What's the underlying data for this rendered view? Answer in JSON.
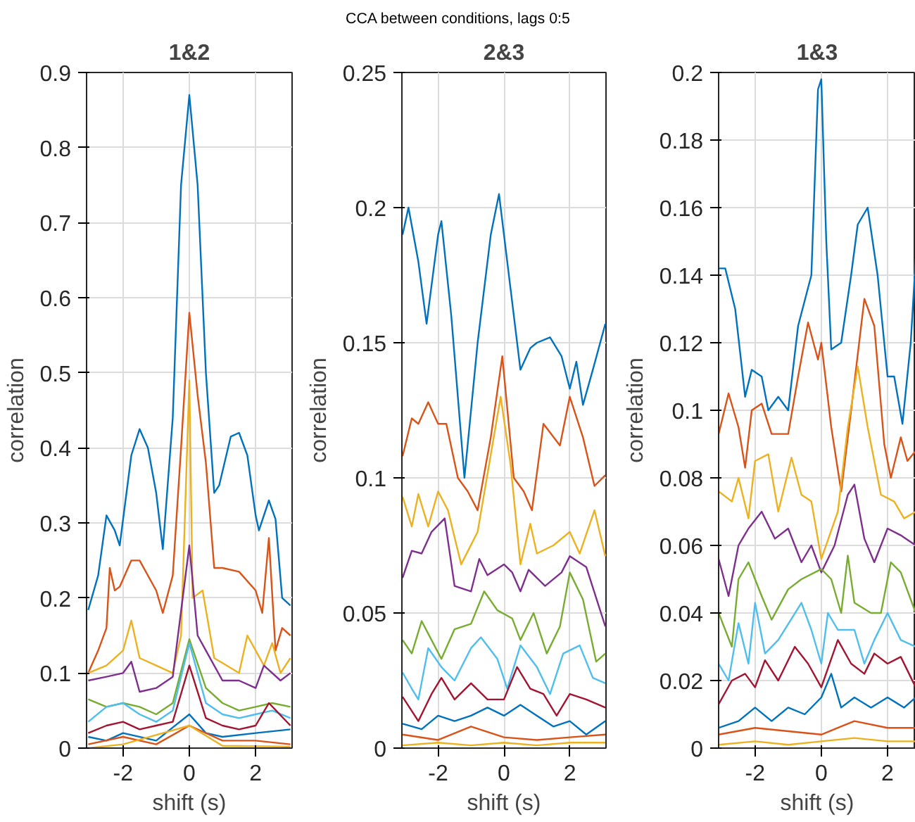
{
  "chart_data": [
    {
      "type": "line",
      "title": "1&2",
      "xlabel": "shift (s)",
      "ylabel": "correlation",
      "annotations": [
        "CCA between conditions, lags 0:5"
      ],
      "xlim": [
        -3.1,
        3.1
      ],
      "xticks": [
        -2,
        0,
        2
      ],
      "ylim": [
        0,
        0.9
      ],
      "yticks": [
        0,
        0.1,
        0.2,
        0.3,
        0.4,
        0.5,
        0.6,
        0.7,
        0.8,
        0.9
      ],
      "grid": true,
      "line_style": "solid",
      "series": [
        {
          "color": "#0072bd",
          "x": [
            -3.05,
            -2.75,
            -2.5,
            -2.25,
            -2.1,
            -1.75,
            -1.5,
            -1.25,
            -1.0,
            -0.8,
            -0.5,
            -0.25,
            0,
            0.25,
            0.5,
            0.75,
            0.9,
            1.25,
            1.5,
            1.75,
            2.0,
            2.1,
            2.4,
            2.6,
            2.8,
            3.05
          ],
          "values": [
            0.184,
            0.23,
            0.31,
            0.29,
            0.27,
            0.39,
            0.425,
            0.4,
            0.34,
            0.265,
            0.44,
            0.75,
            0.87,
            0.75,
            0.5,
            0.34,
            0.35,
            0.415,
            0.42,
            0.39,
            0.31,
            0.29,
            0.33,
            0.305,
            0.2,
            0.19
          ]
        },
        {
          "color": "#d95319",
          "x": [
            -3.05,
            -2.75,
            -2.5,
            -2.4,
            -2.25,
            -2.1,
            -1.75,
            -1.5,
            -1.0,
            -0.8,
            -0.5,
            -0.25,
            0,
            0.25,
            0.5,
            0.75,
            1.0,
            1.5,
            2.0,
            2.2,
            2.4,
            2.6,
            2.8,
            3.05
          ],
          "values": [
            0.1,
            0.13,
            0.16,
            0.24,
            0.21,
            0.215,
            0.25,
            0.25,
            0.21,
            0.18,
            0.23,
            0.4,
            0.58,
            0.47,
            0.38,
            0.24,
            0.24,
            0.235,
            0.21,
            0.18,
            0.28,
            0.13,
            0.16,
            0.15
          ]
        },
        {
          "color": "#edb120",
          "x": [
            -3.05,
            -2.5,
            -2.0,
            -1.75,
            -1.5,
            -1.0,
            -0.5,
            -0.25,
            0,
            0.1,
            0.4,
            0.75,
            1.5,
            1.75,
            2.25,
            2.5,
            2.75,
            3.05
          ],
          "values": [
            0.1,
            0.11,
            0.13,
            0.17,
            0.12,
            0.11,
            0.1,
            0.15,
            0.49,
            0.2,
            0.21,
            0.12,
            0.1,
            0.15,
            0.11,
            0.14,
            0.1,
            0.12
          ]
        },
        {
          "color": "#7e2f8e",
          "x": [
            -3.05,
            -2.5,
            -2.0,
            -1.75,
            -1.5,
            -1.0,
            -0.5,
            0,
            0.25,
            0.5,
            1.0,
            1.5,
            2.0,
            2.25,
            2.75,
            3.05
          ],
          "values": [
            0.09,
            0.095,
            0.1,
            0.115,
            0.075,
            0.08,
            0.095,
            0.27,
            0.15,
            0.13,
            0.09,
            0.09,
            0.08,
            0.11,
            0.09,
            0.1
          ]
        },
        {
          "color": "#77ac30",
          "x": [
            -3.05,
            -2.5,
            -2.0,
            -1.5,
            -1.0,
            -0.5,
            0,
            0.5,
            1.0,
            1.5,
            2.0,
            2.5,
            3.05
          ],
          "values": [
            0.065,
            0.055,
            0.06,
            0.055,
            0.045,
            0.06,
            0.145,
            0.08,
            0.06,
            0.05,
            0.055,
            0.06,
            0.055
          ]
        },
        {
          "color": "#4dbeee",
          "x": [
            -3.05,
            -2.5,
            -2.0,
            -1.5,
            -1.0,
            -0.5,
            0,
            0.5,
            1.0,
            1.5,
            2.0,
            2.5,
            3.05
          ],
          "values": [
            0.035,
            0.055,
            0.06,
            0.045,
            0.035,
            0.05,
            0.14,
            0.06,
            0.045,
            0.04,
            0.045,
            0.05,
            0.04
          ]
        },
        {
          "color": "#a2142f",
          "x": [
            -3.05,
            -2.5,
            -2.0,
            -1.5,
            -1.0,
            -0.5,
            0,
            0.5,
            1.0,
            1.5,
            2.0,
            2.4,
            3.05
          ],
          "values": [
            0.02,
            0.03,
            0.035,
            0.025,
            0.03,
            0.035,
            0.11,
            0.04,
            0.03,
            0.025,
            0.03,
            0.06,
            0.03
          ]
        },
        {
          "color": "#0072bd",
          "x": [
            -3.05,
            -2.5,
            -2.0,
            -1.0,
            0,
            0.5,
            1.0,
            2.0,
            3.05
          ],
          "values": [
            0.015,
            0.01,
            0.02,
            0.01,
            0.045,
            0.02,
            0.015,
            0.02,
            0.025
          ]
        },
        {
          "color": "#d95319",
          "x": [
            -3.05,
            -2.0,
            -1.0,
            0,
            1.0,
            2.0,
            3.05
          ],
          "values": [
            0.005,
            0.015,
            0.005,
            0.03,
            0.01,
            0.01,
            0.005
          ]
        },
        {
          "color": "#edb120",
          "x": [
            -3.05,
            -2.0,
            0,
            1.0,
            3.05
          ],
          "values": [
            0.0,
            0.005,
            0.03,
            0.003,
            0.002
          ]
        }
      ]
    },
    {
      "type": "line",
      "title": "2&3",
      "xlabel": "shift (s)",
      "ylabel": "correlation",
      "xlim": [
        -3.1,
        3.1
      ],
      "xticks": [
        -2,
        0,
        2
      ],
      "ylim": [
        0,
        0.25
      ],
      "yticks": [
        0,
        0.05,
        0.1,
        0.15,
        0.2,
        0.25
      ],
      "grid": true,
      "line_style": "solid",
      "series": [
        {
          "color": "#0072bd",
          "x": [
            -3.08,
            -2.9,
            -2.6,
            -2.35,
            -2.0,
            -1.9,
            -1.6,
            -1.2,
            -0.8,
            -0.4,
            -0.15,
            0.2,
            0.5,
            0.8,
            1.0,
            1.4,
            1.75,
            2.0,
            2.2,
            2.4,
            2.7,
            3.08
          ],
          "values": [
            0.19,
            0.2,
            0.18,
            0.157,
            0.19,
            0.195,
            0.16,
            0.1,
            0.15,
            0.19,
            0.205,
            0.17,
            0.14,
            0.148,
            0.15,
            0.152,
            0.145,
            0.133,
            0.143,
            0.127,
            0.14,
            0.157
          ]
        },
        {
          "color": "#d95319",
          "x": [
            -3.08,
            -2.8,
            -2.6,
            -2.3,
            -2.0,
            -1.75,
            -1.4,
            -1.1,
            -0.8,
            -0.4,
            -0.05,
            0.3,
            0.6,
            0.85,
            1.2,
            1.7,
            2.0,
            2.4,
            2.75,
            3.08
          ],
          "values": [
            0.108,
            0.122,
            0.12,
            0.128,
            0.12,
            0.12,
            0.1,
            0.095,
            0.088,
            0.115,
            0.145,
            0.1,
            0.095,
            0.088,
            0.12,
            0.112,
            0.13,
            0.115,
            0.097,
            0.101
          ]
        },
        {
          "color": "#edb120",
          "x": [
            -3.08,
            -2.8,
            -2.6,
            -2.3,
            -2.0,
            -1.7,
            -1.3,
            -0.8,
            -0.1,
            0.2,
            0.5,
            0.8,
            1.0,
            1.5,
            2.0,
            2.3,
            2.75,
            3.08
          ],
          "values": [
            0.093,
            0.082,
            0.094,
            0.082,
            0.095,
            0.088,
            0.068,
            0.08,
            0.13,
            0.105,
            0.068,
            0.083,
            0.072,
            0.075,
            0.08,
            0.072,
            0.088,
            0.071
          ]
        },
        {
          "color": "#7e2f8e",
          "x": [
            -3.08,
            -2.8,
            -2.5,
            -2.2,
            -1.8,
            -1.5,
            -1.0,
            -0.75,
            -0.5,
            0,
            0.25,
            0.5,
            0.75,
            1.25,
            1.75,
            2.0,
            2.5,
            3.08
          ],
          "values": [
            0.063,
            0.073,
            0.072,
            0.08,
            0.085,
            0.06,
            0.058,
            0.07,
            0.064,
            0.068,
            0.065,
            0.058,
            0.066,
            0.06,
            0.065,
            0.071,
            0.067,
            0.045
          ]
        },
        {
          "color": "#77ac30",
          "x": [
            -3.08,
            -2.8,
            -2.5,
            -2.2,
            -1.9,
            -1.5,
            -1.0,
            -0.6,
            -0.2,
            0.25,
            0.5,
            0.9,
            1.3,
            1.7,
            2.0,
            2.4,
            2.8,
            3.08
          ],
          "values": [
            0.04,
            0.035,
            0.047,
            0.04,
            0.033,
            0.044,
            0.046,
            0.058,
            0.051,
            0.048,
            0.04,
            0.05,
            0.035,
            0.045,
            0.065,
            0.055,
            0.032,
            0.035
          ]
        },
        {
          "color": "#4dbeee",
          "x": [
            -3.08,
            -2.8,
            -2.6,
            -2.3,
            -1.9,
            -1.5,
            -1.0,
            -0.7,
            -0.2,
            0.1,
            0.5,
            1.0,
            1.4,
            1.8,
            2.3,
            2.7,
            3.08
          ],
          "values": [
            0.028,
            0.022,
            0.018,
            0.037,
            0.03,
            0.025,
            0.037,
            0.041,
            0.033,
            0.022,
            0.038,
            0.03,
            0.02,
            0.035,
            0.038,
            0.026,
            0.024
          ]
        },
        {
          "color": "#a2142f",
          "x": [
            -3.08,
            -2.6,
            -2.2,
            -1.9,
            -1.5,
            -1.0,
            -0.5,
            0,
            0.4,
            0.8,
            1.2,
            1.6,
            2.0,
            2.5,
            3.08
          ],
          "values": [
            0.019,
            0.01,
            0.02,
            0.026,
            0.018,
            0.024,
            0.018,
            0.018,
            0.03,
            0.022,
            0.02,
            0.012,
            0.02,
            0.018,
            0.015
          ]
        },
        {
          "color": "#0072bd",
          "x": [
            -3.08,
            -2.5,
            -2.0,
            -1.5,
            -1.0,
            -0.5,
            0,
            0.5,
            1.0,
            1.5,
            2.0,
            2.5,
            3.08
          ],
          "values": [
            0.009,
            0.007,
            0.012,
            0.01,
            0.012,
            0.015,
            0.012,
            0.016,
            0.012,
            0.008,
            0.01,
            0.005,
            0.01
          ]
        },
        {
          "color": "#d95319",
          "x": [
            -3.08,
            -2.0,
            -1.0,
            0,
            1.0,
            2.0,
            3.08
          ],
          "values": [
            0.005,
            0.003,
            0.008,
            0.004,
            0.003,
            0.004,
            0.005
          ]
        },
        {
          "color": "#edb120",
          "x": [
            -3.08,
            -2.0,
            -1.0,
            0,
            1.0,
            2.0,
            3.08
          ],
          "values": [
            0.001,
            0.002,
            0.001,
            0.002,
            0.001,
            0.002,
            0.002
          ]
        }
      ]
    },
    {
      "type": "line",
      "title": "1&3",
      "xlabel": "shift (s)",
      "ylabel": "correlation",
      "xlim": [
        -3.1,
        2.85
      ],
      "xticks": [
        -2,
        0,
        2
      ],
      "ylim": [
        0,
        0.2
      ],
      "yticks": [
        0,
        0.02,
        0.04,
        0.06,
        0.08,
        0.1,
        0.12,
        0.14,
        0.16,
        0.18,
        0.2
      ],
      "grid": true,
      "line_style": "solid",
      "series": [
        {
          "color": "#0072bd",
          "x": [
            -3.1,
            -2.9,
            -2.6,
            -2.3,
            -2.1,
            -1.8,
            -1.6,
            -1.3,
            -1.0,
            -0.7,
            -0.3,
            -0.1,
            0,
            0.15,
            0.3,
            0.6,
            0.9,
            1.1,
            1.4,
            1.7,
            2.0,
            2.2,
            2.45,
            2.7,
            2.85
          ],
          "values": [
            0.142,
            0.142,
            0.13,
            0.104,
            0.112,
            0.11,
            0.1,
            0.104,
            0.1,
            0.125,
            0.14,
            0.195,
            0.198,
            0.15,
            0.118,
            0.12,
            0.14,
            0.155,
            0.16,
            0.14,
            0.11,
            0.11,
            0.096,
            0.12,
            0.145
          ]
        },
        {
          "color": "#d95319",
          "x": [
            -3.1,
            -2.8,
            -2.5,
            -2.3,
            -2.1,
            -1.8,
            -1.5,
            -1.0,
            -0.7,
            -0.4,
            -0.1,
            0,
            0.3,
            0.6,
            0.9,
            1.3,
            1.6,
            1.9,
            2.1,
            2.4,
            2.6,
            2.85
          ],
          "values": [
            0.093,
            0.105,
            0.095,
            0.083,
            0.1,
            0.102,
            0.093,
            0.093,
            0.11,
            0.126,
            0.115,
            0.12,
            0.095,
            0.076,
            0.1,
            0.133,
            0.125,
            0.09,
            0.08,
            0.092,
            0.085,
            0.088
          ]
        },
        {
          "color": "#edb120",
          "x": [
            -3.1,
            -2.7,
            -2.5,
            -2.2,
            -2.0,
            -1.6,
            -1.3,
            -0.9,
            -0.6,
            -0.3,
            0,
            0.5,
            0.8,
            1.1,
            1.4,
            1.8,
            2.2,
            2.5,
            2.85
          ],
          "values": [
            0.076,
            0.073,
            0.08,
            0.068,
            0.085,
            0.087,
            0.07,
            0.086,
            0.075,
            0.073,
            0.056,
            0.07,
            0.095,
            0.113,
            0.095,
            0.075,
            0.073,
            0.068,
            0.07
          ]
        },
        {
          "color": "#7e2f8e",
          "x": [
            -3.1,
            -2.8,
            -2.5,
            -2.2,
            -1.8,
            -1.4,
            -1.0,
            -0.6,
            -0.3,
            0,
            0.4,
            0.8,
            1.0,
            1.3,
            1.6,
            2.0,
            2.4,
            2.85
          ],
          "values": [
            0.056,
            0.045,
            0.06,
            0.065,
            0.07,
            0.062,
            0.065,
            0.055,
            0.06,
            0.052,
            0.06,
            0.075,
            0.078,
            0.062,
            0.055,
            0.065,
            0.063,
            0.06
          ]
        },
        {
          "color": "#77ac30",
          "x": [
            -3.1,
            -2.7,
            -2.5,
            -2.2,
            -1.8,
            -1.5,
            -1.0,
            -0.6,
            0,
            0.3,
            0.6,
            0.8,
            1.0,
            1.5,
            1.8,
            2.1,
            2.4,
            2.85
          ],
          "values": [
            0.04,
            0.03,
            0.05,
            0.055,
            0.045,
            0.038,
            0.047,
            0.05,
            0.053,
            0.05,
            0.04,
            0.057,
            0.043,
            0.04,
            0.04,
            0.055,
            0.052,
            0.04
          ]
        },
        {
          "color": "#4dbeee",
          "x": [
            -3.1,
            -2.8,
            -2.5,
            -2.2,
            -2.0,
            -1.7,
            -1.3,
            -0.6,
            -0.3,
            0,
            0.2,
            0.5,
            1.0,
            1.3,
            1.6,
            2.0,
            2.4,
            2.85
          ],
          "values": [
            0.025,
            0.02,
            0.037,
            0.025,
            0.043,
            0.028,
            0.032,
            0.043,
            0.035,
            0.025,
            0.04,
            0.035,
            0.035,
            0.025,
            0.032,
            0.04,
            0.032,
            0.03
          ]
        },
        {
          "color": "#a2142f",
          "x": [
            -3.1,
            -2.7,
            -2.3,
            -2.0,
            -1.7,
            -1.3,
            -0.8,
            -0.4,
            0,
            0.5,
            0.9,
            1.3,
            1.6,
            2.0,
            2.4,
            2.85
          ],
          "values": [
            0.013,
            0.02,
            0.022,
            0.018,
            0.026,
            0.02,
            0.03,
            0.025,
            0.018,
            0.032,
            0.025,
            0.022,
            0.028,
            0.025,
            0.027,
            0.018
          ]
        },
        {
          "color": "#0072bd",
          "x": [
            -3.1,
            -2.5,
            -2.0,
            -1.5,
            -1.0,
            -0.5,
            0,
            0.3,
            0.6,
            1.0,
            1.5,
            2.0,
            2.5,
            2.85
          ],
          "values": [
            0.006,
            0.008,
            0.012,
            0.008,
            0.012,
            0.01,
            0.015,
            0.022,
            0.012,
            0.015,
            0.012,
            0.015,
            0.012,
            0.015
          ]
        },
        {
          "color": "#d95319",
          "x": [
            -3.1,
            -2.0,
            -1.0,
            0,
            0.5,
            1.0,
            2.0,
            2.85
          ],
          "values": [
            0.004,
            0.006,
            0.005,
            0.004,
            0.006,
            0.008,
            0.006,
            0.006
          ]
        },
        {
          "color": "#edb120",
          "x": [
            -3.1,
            -2.0,
            -1.0,
            0,
            1.0,
            2.0,
            2.85
          ],
          "values": [
            0.001,
            0.002,
            0.001,
            0.002,
            0.003,
            0.002,
            0.002
          ]
        }
      ]
    }
  ]
}
